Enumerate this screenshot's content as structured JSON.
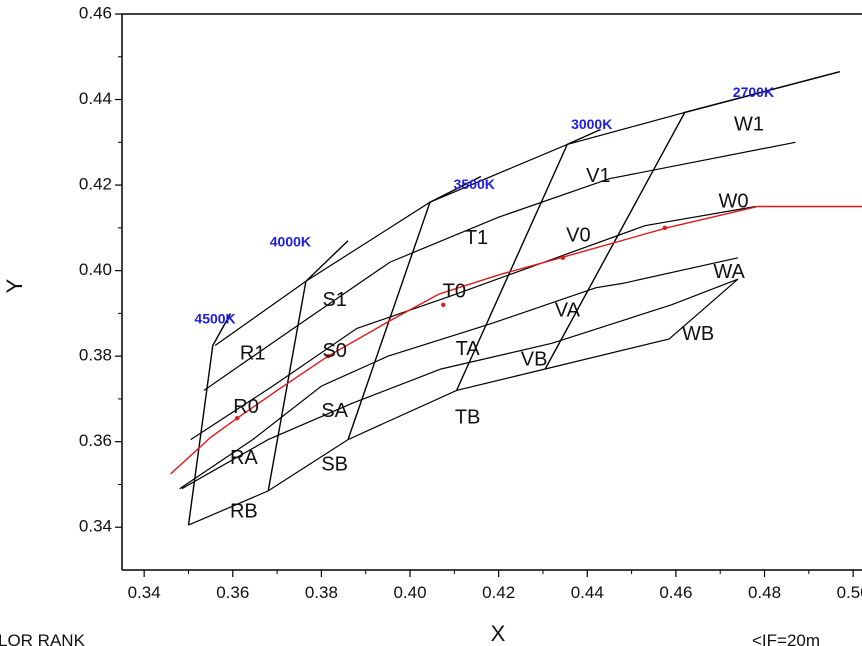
{
  "chart_data": {
    "type": "line",
    "title": "",
    "xlabel": "X",
    "ylabel": "Y",
    "xlim": [
      0.335,
      0.502
    ],
    "ylim": [
      0.33,
      0.46
    ],
    "xticks": [
      0.34,
      0.36,
      0.38,
      0.4,
      0.42,
      0.44,
      0.46,
      0.48,
      0.5
    ],
    "yticks": [
      0.34,
      0.36,
      0.38,
      0.4,
      0.42,
      0.44,
      0.46
    ],
    "xtick_labels": [
      "0.34",
      "0.36",
      "0.38",
      "0.40",
      "0.42",
      "0.44",
      "0.46",
      "0.48",
      "0.50"
    ],
    "ytick_labels": [
      "0.34",
      "0.36",
      "0.38",
      "0.40",
      "0.42",
      "0.44",
      "0.46"
    ],
    "grid": false,
    "colors": {
      "grid_lines": "#000000",
      "locus": "#e0191b",
      "cct_text": "#1d1de8"
    },
    "cct_lines": [
      {
        "name": "4500K",
        "points": [
          [
            0.35,
            0.3405
          ],
          [
            0.3555,
            0.3825
          ],
          [
            0.3595,
            0.39
          ]
        ]
      },
      {
        "name": "4000K",
        "points": [
          [
            0.368,
            0.3485
          ],
          [
            0.3765,
            0.3975
          ],
          [
            0.386,
            0.407
          ]
        ]
      },
      {
        "name": "3500K",
        "points": [
          [
            0.386,
            0.3605
          ],
          [
            0.4045,
            0.416
          ],
          [
            0.416,
            0.422
          ]
        ]
      },
      {
        "name": "3000K",
        "points": [
          [
            0.4105,
            0.372
          ],
          [
            0.4355,
            0.4295
          ],
          [
            0.443,
            0.433
          ]
        ]
      },
      {
        "name": "2700K",
        "points": [
          [
            0.4305,
            0.377
          ],
          [
            0.462,
            0.437
          ],
          [
            0.497,
            0.4465
          ]
        ]
      }
    ],
    "bin_lines": [
      [
        [
          0.356,
          0.3825
        ],
        [
          0.3765,
          0.3975
        ],
        [
          0.4045,
          0.416
        ],
        [
          0.4355,
          0.4295
        ],
        [
          0.462,
          0.437
        ],
        [
          0.497,
          0.4465
        ]
      ],
      [
        [
          0.3535,
          0.372
        ],
        [
          0.373,
          0.386
        ],
        [
          0.3955,
          0.402
        ],
        [
          0.42,
          0.4125
        ],
        [
          0.445,
          0.4215
        ],
        [
          0.487,
          0.43
        ]
      ],
      [
        [
          0.3505,
          0.3605
        ],
        [
          0.369,
          0.373
        ],
        [
          0.388,
          0.3865
        ],
        [
          0.409,
          0.394
        ],
        [
          0.433,
          0.403
        ],
        [
          0.453,
          0.4105
        ],
        [
          0.478,
          0.415
        ]
      ],
      [
        [
          0.348,
          0.349
        ],
        [
          0.3645,
          0.3605
        ],
        [
          0.38,
          0.373
        ],
        [
          0.395,
          0.38
        ],
        [
          0.418,
          0.3875
        ],
        [
          0.442,
          0.396
        ],
        [
          0.448,
          0.397
        ],
        [
          0.474,
          0.403
        ]
      ],
      [
        [
          0.3485,
          0.349
        ],
        [
          0.368,
          0.3605
        ],
        [
          0.387,
          0.369
        ],
        [
          0.407,
          0.377
        ],
        [
          0.432,
          0.383
        ],
        [
          0.459,
          0.392
        ],
        [
          0.474,
          0.398
        ]
      ],
      [
        [
          0.35,
          0.3405
        ],
        [
          0.368,
          0.3485
        ],
        [
          0.386,
          0.3605
        ],
        [
          0.4105,
          0.372
        ],
        [
          0.4305,
          0.377
        ],
        [
          0.4585,
          0.384
        ],
        [
          0.474,
          0.398
        ]
      ]
    ],
    "locus": {
      "x": [
        0.346,
        0.355,
        0.361,
        0.37,
        0.3815,
        0.395,
        0.4065,
        0.42,
        0.434,
        0.458,
        0.4785,
        0.502
      ],
      "y": [
        0.3525,
        0.361,
        0.3655,
        0.372,
        0.38,
        0.388,
        0.3945,
        0.399,
        0.403,
        0.41,
        0.415,
        0.415
      ]
    },
    "locus_markers": {
      "x": [
        0.361,
        0.3815,
        0.4075,
        0.4345,
        0.4575
      ],
      "y": [
        0.3655,
        0.38,
        0.392,
        0.403,
        0.41
      ]
    },
    "bin_labels": [
      {
        "text": "R1",
        "x": 0.3645,
        "y": 0.3805
      },
      {
        "text": "R0",
        "x": 0.363,
        "y": 0.368
      },
      {
        "text": "RA",
        "x": 0.3625,
        "y": 0.356
      },
      {
        "text": "RB",
        "x": 0.3625,
        "y": 0.3435
      },
      {
        "text": "S1",
        "x": 0.383,
        "y": 0.393
      },
      {
        "text": "S0",
        "x": 0.383,
        "y": 0.381
      },
      {
        "text": "SA",
        "x": 0.383,
        "y": 0.367
      },
      {
        "text": "SB",
        "x": 0.383,
        "y": 0.3545
      },
      {
        "text": "T1",
        "x": 0.415,
        "y": 0.4075
      },
      {
        "text": "T0",
        "x": 0.41,
        "y": 0.395
      },
      {
        "text": "TA",
        "x": 0.413,
        "y": 0.3815
      },
      {
        "text": "TB",
        "x": 0.413,
        "y": 0.3655
      },
      {
        "text": "V1",
        "x": 0.4425,
        "y": 0.422
      },
      {
        "text": "V0",
        "x": 0.438,
        "y": 0.408
      },
      {
        "text": "VA",
        "x": 0.4355,
        "y": 0.3905
      },
      {
        "text": "VB",
        "x": 0.428,
        "y": 0.379
      },
      {
        "text": "W1",
        "x": 0.4765,
        "y": 0.434
      },
      {
        "text": "W0",
        "x": 0.473,
        "y": 0.416
      },
      {
        "text": "WA",
        "x": 0.472,
        "y": 0.3995
      },
      {
        "text": "WB",
        "x": 0.465,
        "y": 0.385
      }
    ],
    "cct_labels": [
      {
        "text": "4500K",
        "x": 0.356,
        "y": 0.3885
      },
      {
        "text": "4000K",
        "x": 0.373,
        "y": 0.4065
      },
      {
        "text": "3500K",
        "x": 0.4145,
        "y": 0.42
      },
      {
        "text": "3000K",
        "x": 0.441,
        "y": 0.434
      },
      {
        "text": "2700K",
        "x": 0.4775,
        "y": 0.4415
      }
    ]
  },
  "footer": {
    "left": "LOR RANK",
    "right": "<IF=20m"
  }
}
